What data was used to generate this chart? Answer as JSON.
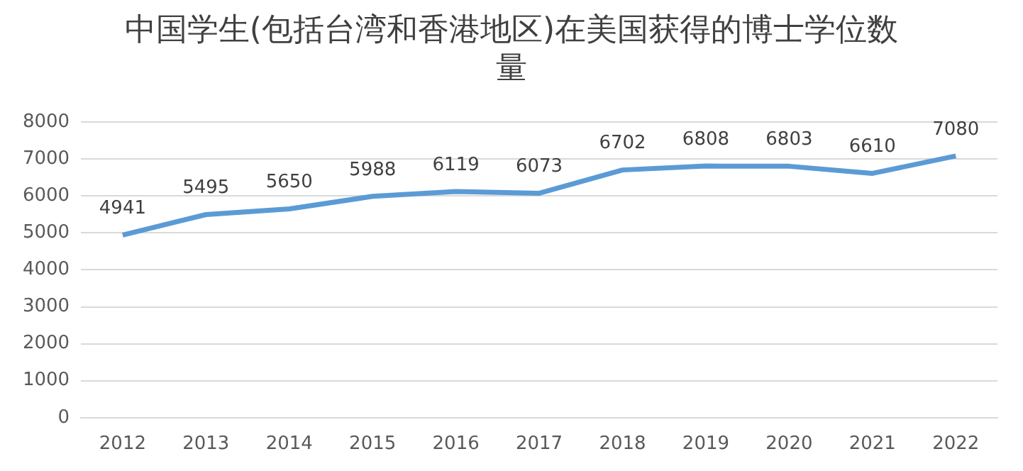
{
  "chart_data": {
    "type": "line",
    "title": "中国学生(包括台湾和香港地区)在美国获得的博士学位数量",
    "categories": [
      "2012",
      "2013",
      "2014",
      "2015",
      "2016",
      "2017",
      "2018",
      "2019",
      "2020",
      "2021",
      "2022"
    ],
    "series": [
      {
        "color": "#5b9bd5",
        "values": [
          4941,
          5495,
          5650,
          5988,
          6119,
          6073,
          6702,
          6808,
          6803,
          6610,
          7080
        ]
      }
    ],
    "ylim": [
      0,
      8000
    ],
    "yticks": [
      0,
      1000,
      2000,
      3000,
      4000,
      5000,
      6000,
      7000,
      8000
    ],
    "grid": "y",
    "legend": false,
    "marker": "none",
    "line_style": "solid",
    "data_labels": true
  }
}
